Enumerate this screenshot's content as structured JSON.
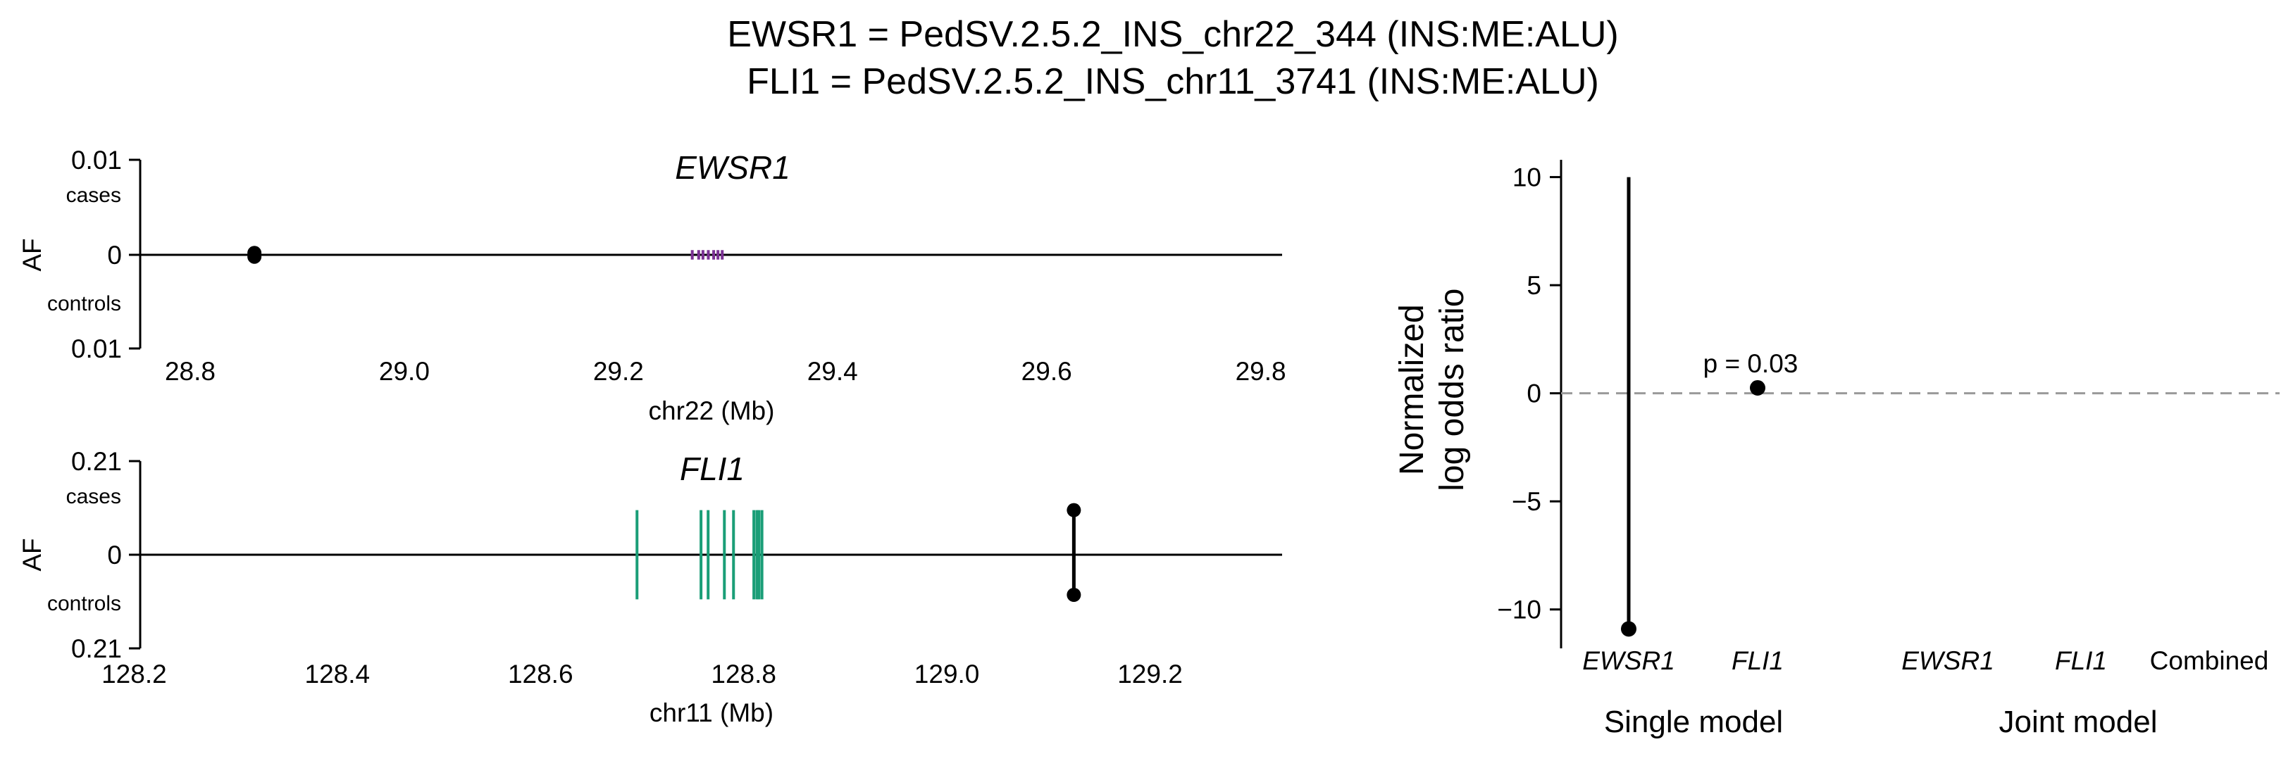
{
  "figure": {
    "title_line1": "EWSR1 = PedSV.2.5.2_INS_chr22_344 (INS:ME:ALU)",
    "title_line2": "FLI1 = PedSV.2.5.2_INS_chr11_3741 (INS:ME:ALU)"
  },
  "colors": {
    "ewsr1": "#7b3294",
    "fli1": "#1a9e77",
    "axis": "#000000",
    "refline": "#999999"
  },
  "chart_data": [
    {
      "type": "scatter",
      "panel": "locus-chr22",
      "gene_label": "EWSR1",
      "xlabel": "chr22 (Mb)",
      "ylabel": "AF",
      "xlim": [
        28.75,
        29.82
      ],
      "ylim": [
        -0.01,
        0.01
      ],
      "xticks": [
        "28.8",
        "29.0",
        "29.2",
        "29.4",
        "29.6",
        "29.8"
      ],
      "yticks": {
        "top": "0.01",
        "mid": "0",
        "bottom": "0.01"
      },
      "cases_label": "cases",
      "controls_label": "controls",
      "variant": {
        "x": 28.86,
        "af_cases": 0.0002,
        "af_controls": -0.0002
      },
      "exons": [
        29.269,
        29.275,
        29.279,
        29.284,
        29.289,
        29.293,
        29.297
      ],
      "exon_half_height": 0.0005
    },
    {
      "type": "scatter",
      "panel": "locus-chr11",
      "gene_label": "FLI1",
      "xlabel": "chr11 (Mb)",
      "ylabel": "AF",
      "xlim": [
        128.19,
        129.33
      ],
      "ylim": [
        -0.21,
        0.21
      ],
      "xticks": [
        "128.2",
        "128.4",
        "128.6",
        "128.8",
        "129.0",
        "129.2"
      ],
      "yticks": {
        "top": "0.21",
        "mid": "0",
        "bottom": "0.21"
      },
      "cases_label": "cases",
      "controls_label": "controls",
      "variant": {
        "x": 129.125,
        "af_cases": 0.1,
        "af_controls": -0.09
      },
      "exons": [
        128.695,
        128.758,
        128.765,
        128.781,
        128.79,
        128.81,
        128.813,
        128.815,
        128.818
      ],
      "exon_half_height": 0.1
    },
    {
      "type": "scatter",
      "panel": "effects",
      "ylabel_line1": "Normalized",
      "ylabel_line2": "log odds ratio",
      "ylim": [
        -11.8,
        10.8
      ],
      "yticks": [
        10,
        5,
        0,
        -5,
        -10
      ],
      "categories": [
        "EWSR1",
        "FLI1",
        "EWSR1",
        "FLI1",
        "Combined"
      ],
      "groups": [
        "Single model",
        "Joint model"
      ],
      "points": [
        {
          "category": 0,
          "y": -10.9,
          "ci": [
            -10.9,
            10.0
          ]
        },
        {
          "category": 1,
          "y": 0.25,
          "label": "p = 0.03"
        }
      ],
      "refline_y": 0
    }
  ]
}
